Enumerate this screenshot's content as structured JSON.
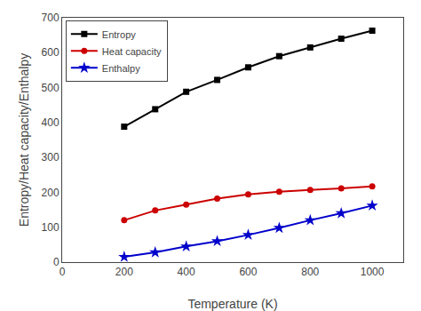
{
  "chart_data": {
    "type": "line",
    "x": [
      200,
      300,
      400,
      500,
      600,
      700,
      800,
      900,
      1000
    ],
    "series": [
      {
        "name": "Entropy",
        "color": "#000000",
        "marker": "square",
        "line_style": "solid",
        "values": [
          388,
          438,
          488,
          522,
          558,
          590,
          615,
          640,
          663
        ]
      },
      {
        "name": "Heat capacity",
        "color": "#cc0000",
        "marker": "circle",
        "line_style": "solid",
        "values": [
          120,
          148,
          165,
          182,
          194,
          202,
          207,
          211,
          217
        ]
      },
      {
        "name": "Enthalpy",
        "color": "#0000cc",
        "marker": "star",
        "line_style": "solid",
        "values": [
          15,
          28,
          45,
          60,
          78,
          98,
          120,
          140,
          162
        ]
      }
    ],
    "xlabel": "Temperature (K)",
    "ylabel": "Entropy/Heat capacity/Enthalpy",
    "xlim": [
      0,
      1100
    ],
    "ylim": [
      0,
      700
    ],
    "xticks": [
      0,
      200,
      400,
      600,
      800,
      1000
    ],
    "yticks": [
      0,
      100,
      200,
      300,
      400,
      500,
      600,
      700
    ],
    "grid": false,
    "legend": "upper left"
  }
}
